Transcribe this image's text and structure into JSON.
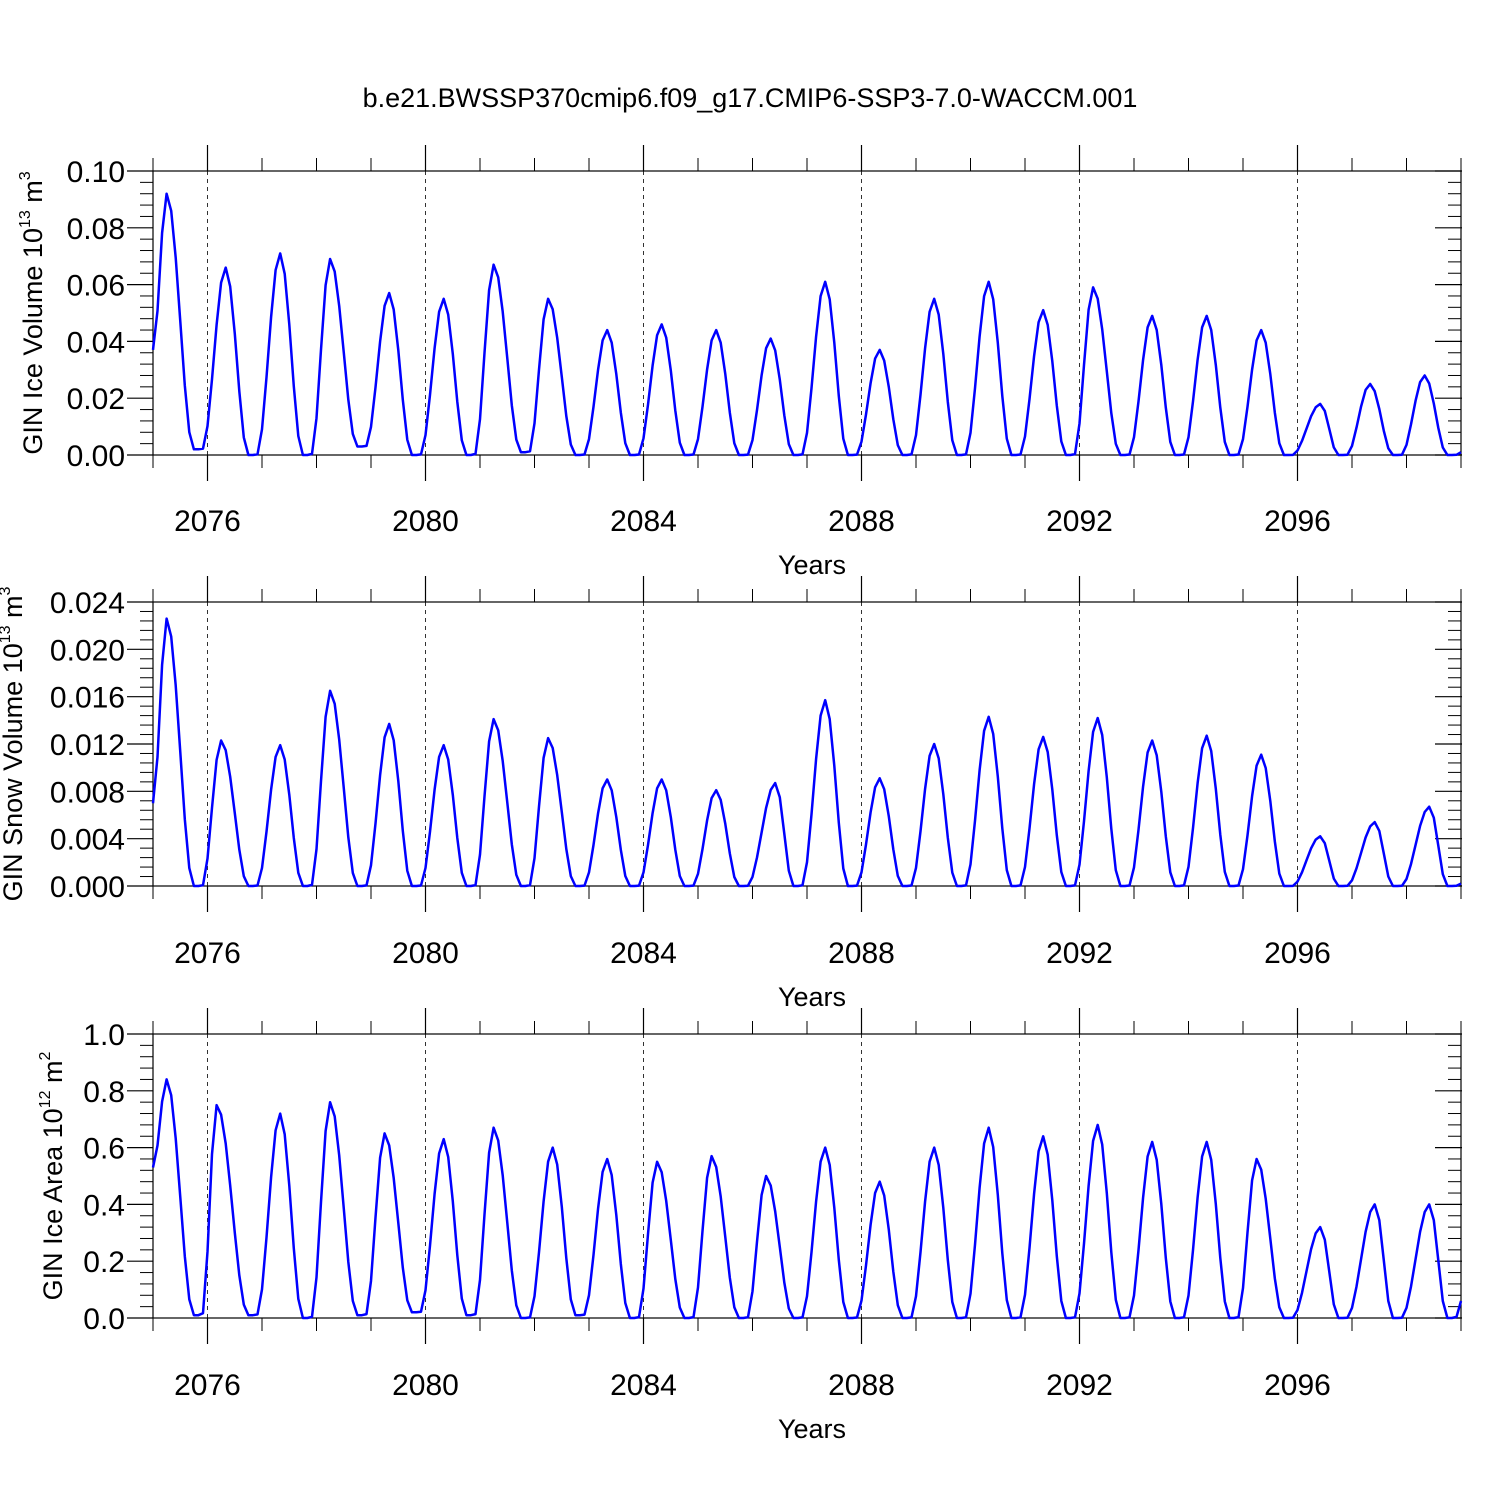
{
  "title": "b.e21.BWSSP370cmip6.f09_g17.CMIP6-SSP3-7.0-WACCM.001",
  "chart_data": [
    {
      "type": "line",
      "name": "ice_volume",
      "ylabel": {
        "main": "GIN Ice Volume 10",
        "sup1": "13",
        "mid": " m",
        "sup2": "3"
      },
      "xlabel": "Years",
      "xlim": [
        2075.0,
        2099.0
      ],
      "ylim": [
        0.0,
        0.1
      ],
      "xticks": [
        "2076",
        "2080",
        "2084",
        "2088",
        "2092",
        "2096"
      ],
      "yticks": [
        "0.00",
        "0.02",
        "0.04",
        "0.06",
        "0.08",
        "0.10"
      ],
      "line_color": "#0000ff",
      "grid": "dashed vertical at labeled years",
      "series_peaks": {
        "peak_years": [
          2075.25,
          2076.33,
          2077.33,
          2078.25,
          2079.33,
          2080.33,
          2081.25,
          2082.25,
          2083.33,
          2084.33,
          2085.33,
          2086.33,
          2087.33,
          2088.33,
          2089.33,
          2090.33,
          2091.33,
          2092.25,
          2093.33,
          2094.33,
          2095.33,
          2096.42,
          2097.33,
          2098.33
        ],
        "peak_values": [
          0.092,
          0.066,
          0.071,
          0.069,
          0.057,
          0.055,
          0.067,
          0.055,
          0.044,
          0.046,
          0.044,
          0.041,
          0.061,
          0.037,
          0.055,
          0.061,
          0.051,
          0.059,
          0.049,
          0.049,
          0.044,
          0.018,
          0.025,
          0.028
        ],
        "minimum_values": [
          0.002,
          0.0,
          0.0,
          0.003,
          0.0,
          0.0,
          0.001,
          0.0,
          0.0,
          0.0,
          0.0,
          0.0,
          0.0,
          0.0,
          0.0,
          0.0,
          0.0,
          0.0,
          0.0,
          0.0,
          0.0,
          0.0,
          0.0,
          0.0
        ],
        "start_value": 0.037,
        "end_value": 0.001
      }
    },
    {
      "type": "line",
      "name": "snow_volume",
      "ylabel": {
        "main": "GIN Snow Volume 10",
        "sup1": "13",
        "mid": " m",
        "sup2": "3"
      },
      "xlabel": "Years",
      "xlim": [
        2075.0,
        2099.0
      ],
      "ylim": [
        0.0,
        0.024
      ],
      "xticks": [
        "2076",
        "2080",
        "2084",
        "2088",
        "2092",
        "2096"
      ],
      "yticks": [
        "0.000",
        "0.004",
        "0.008",
        "0.012",
        "0.016",
        "0.020",
        "0.024"
      ],
      "line_color": "#0000ff",
      "grid": "dashed vertical at labeled years",
      "series_peaks": {
        "peak_years": [
          2075.25,
          2076.25,
          2077.33,
          2078.25,
          2079.33,
          2080.33,
          2081.25,
          2082.25,
          2083.33,
          2084.33,
          2085.33,
          2086.42,
          2087.33,
          2088.33,
          2089.33,
          2090.33,
          2091.33,
          2092.33,
          2093.33,
          2094.33,
          2095.33,
          2096.42,
          2097.42,
          2098.42
        ],
        "peak_values": [
          0.0226,
          0.0123,
          0.0119,
          0.0165,
          0.0137,
          0.0119,
          0.0141,
          0.0125,
          0.009,
          0.009,
          0.0081,
          0.0087,
          0.0157,
          0.0091,
          0.012,
          0.0143,
          0.0126,
          0.0142,
          0.0123,
          0.0127,
          0.0111,
          0.0042,
          0.0054,
          0.0067
        ],
        "minimum_values": [
          0.0,
          0.0,
          0.0,
          0.0,
          0.0,
          0.0,
          0.0,
          0.0,
          0.0,
          0.0,
          0.0,
          0.0,
          0.0,
          0.0,
          0.0,
          0.0,
          0.0,
          0.0,
          0.0,
          0.0,
          0.0,
          0.0,
          0.0,
          0.0
        ],
        "start_value": 0.007,
        "end_value": 0.0002
      }
    },
    {
      "type": "line",
      "name": "ice_area",
      "ylabel": {
        "main": "GIN Ice Area 10",
        "sup1": "12",
        "mid": " m",
        "sup2": "2"
      },
      "xlabel": "Years",
      "xlim": [
        2075.0,
        2099.0
      ],
      "ylim": [
        0.0,
        1.0
      ],
      "xticks": [
        "2076",
        "2080",
        "2084",
        "2088",
        "2092",
        "2096"
      ],
      "yticks": [
        "0.0",
        "0.2",
        "0.4",
        "0.6",
        "0.8",
        "1.0"
      ],
      "line_color": "#0000ff",
      "grid": "dashed vertical at labeled years",
      "series_peaks": {
        "peak_years": [
          2075.25,
          2076.17,
          2077.33,
          2078.25,
          2079.25,
          2080.33,
          2081.25,
          2082.33,
          2083.33,
          2084.25,
          2085.25,
          2086.25,
          2087.33,
          2088.33,
          2089.33,
          2090.33,
          2091.33,
          2092.33,
          2093.33,
          2094.33,
          2095.25,
          2096.42,
          2097.42,
          2098.42
        ],
        "peak_values": [
          0.84,
          0.75,
          0.72,
          0.76,
          0.65,
          0.63,
          0.67,
          0.6,
          0.56,
          0.55,
          0.57,
          0.5,
          0.6,
          0.48,
          0.6,
          0.67,
          0.64,
          0.68,
          0.62,
          0.62,
          0.56,
          0.32,
          0.4,
          0.4
        ],
        "minimum_values": [
          0.01,
          0.01,
          0.0,
          0.01,
          0.02,
          0.01,
          0.0,
          0.01,
          0.0,
          0.0,
          0.0,
          0.0,
          0.0,
          0.0,
          0.0,
          0.0,
          0.0,
          0.0,
          0.0,
          0.0,
          0.0,
          0.0,
          0.0,
          0.0
        ],
        "start_value": 0.53,
        "end_value": 0.06
      }
    }
  ]
}
